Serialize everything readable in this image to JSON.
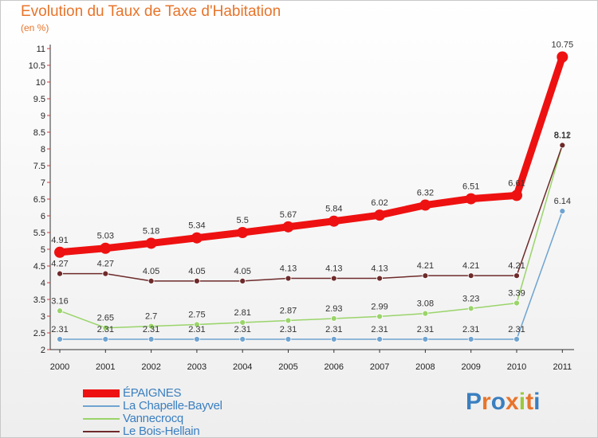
{
  "header": {
    "title": "Evolution du Taux de Taxe d'Habitation",
    "unit": "(en %)"
  },
  "brand": {
    "text": "Proxiti",
    "letter_colors": [
      "#3a7fc0",
      "#e8742a",
      "#3a7fc0",
      "#e8742a",
      "#9ac93b",
      "#e8742a",
      "#3a7fc0"
    ]
  },
  "chart_data": {
    "type": "line",
    "x": [
      "2000",
      "2001",
      "2002",
      "2003",
      "2004",
      "2005",
      "2006",
      "2007",
      "2008",
      "2009",
      "2010",
      "2011"
    ],
    "ylim": [
      2,
      11
    ],
    "yticks": [
      "2",
      "2.5",
      "3",
      "3.5",
      "4",
      "4.5",
      "5",
      "5.5",
      "6",
      "6.5",
      "7",
      "7.5",
      "8",
      "8.5",
      "9",
      "9.5",
      "10",
      "10.5",
      "11"
    ],
    "grid": false,
    "legend_position": "bottom-left",
    "series": [
      {
        "name": "ÉPAIGNES",
        "color": "#ee1111",
        "values": [
          4.91,
          5.03,
          5.18,
          5.34,
          5.5,
          5.67,
          5.84,
          6.02,
          6.32,
          6.51,
          6.61,
          10.75
        ],
        "labels": [
          "4.91",
          "5.03",
          "5.18",
          "5.34",
          "5.5",
          "5.67",
          "5.84",
          "6.02",
          "6.32",
          "6.51",
          "6.61",
          "10.75"
        ]
      },
      {
        "name": "La Chapelle-Bayvel",
        "color": "#6fa3d0",
        "values": [
          2.31,
          2.31,
          2.31,
          2.31,
          2.31,
          2.31,
          2.31,
          2.31,
          2.31,
          2.31,
          2.31,
          6.14
        ],
        "labels": [
          "2.31",
          "2.31",
          "2.31",
          "2.31",
          "2.31",
          "2.31",
          "2.31",
          "2.31",
          "2.31",
          "2.31",
          "2.31",
          "6.14"
        ]
      },
      {
        "name": "Vannecrocq",
        "color": "#9ad46a",
        "values": [
          3.16,
          2.65,
          2.7,
          2.75,
          2.81,
          2.87,
          2.93,
          2.99,
          3.08,
          3.23,
          3.39,
          8.12
        ],
        "labels": [
          "3.16",
          "2.65",
          "2.7",
          "2.75",
          "2.81",
          "2.87",
          "2.93",
          "2.99",
          "3.08",
          "3.23",
          "3.39",
          "8.12"
        ]
      },
      {
        "name": "Le Bois-Hellain",
        "color": "#6e2a2a",
        "values": [
          4.27,
          4.27,
          4.05,
          4.05,
          4.05,
          4.13,
          4.13,
          4.13,
          4.21,
          4.21,
          4.21,
          8.11
        ],
        "labels": [
          "4.27",
          "4.27",
          "4.05",
          "4.05",
          "4.05",
          "4.13",
          "4.13",
          "4.13",
          "4.21",
          "4.21",
          "4.21",
          "8.11"
        ]
      }
    ]
  }
}
